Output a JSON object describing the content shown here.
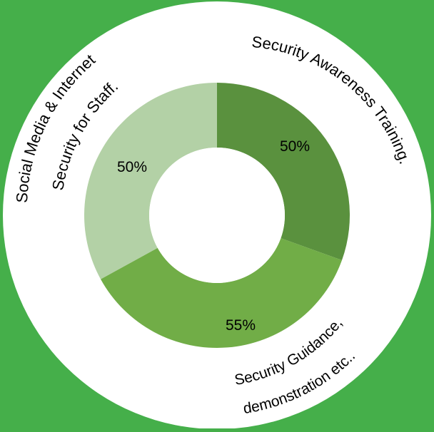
{
  "colors": {
    "background": "#45af4a",
    "outer_ring": "#ffffff",
    "center_hole": "#ffffff",
    "label_text": "#000000"
  },
  "chart_data": {
    "type": "pie",
    "variant": "donut",
    "title": "",
    "slices": [
      {
        "label": "Security Awareness Training.",
        "value_label": "50%",
        "value": 50,
        "share_of_ring": 0.305,
        "color": "#5a913e"
      },
      {
        "label": "Security Guidance, demonstration etc..",
        "value_label": "55%",
        "value": 55,
        "share_of_ring": 0.365,
        "color": "#71ad47"
      },
      {
        "label": "Social Media & Internet Security for Staff.",
        "value_label": "50%",
        "value": 50,
        "share_of_ring": 0.33,
        "color": "#b3d1a6"
      }
    ],
    "label_lines": {
      "security_awareness": [
        "Security Awareness Training."
      ],
      "security_guidance": [
        "Security Guidance,",
        "demonstration etc.."
      ],
      "social_media": [
        "Social Media & Internet",
        "Security for Staff."
      ]
    }
  }
}
